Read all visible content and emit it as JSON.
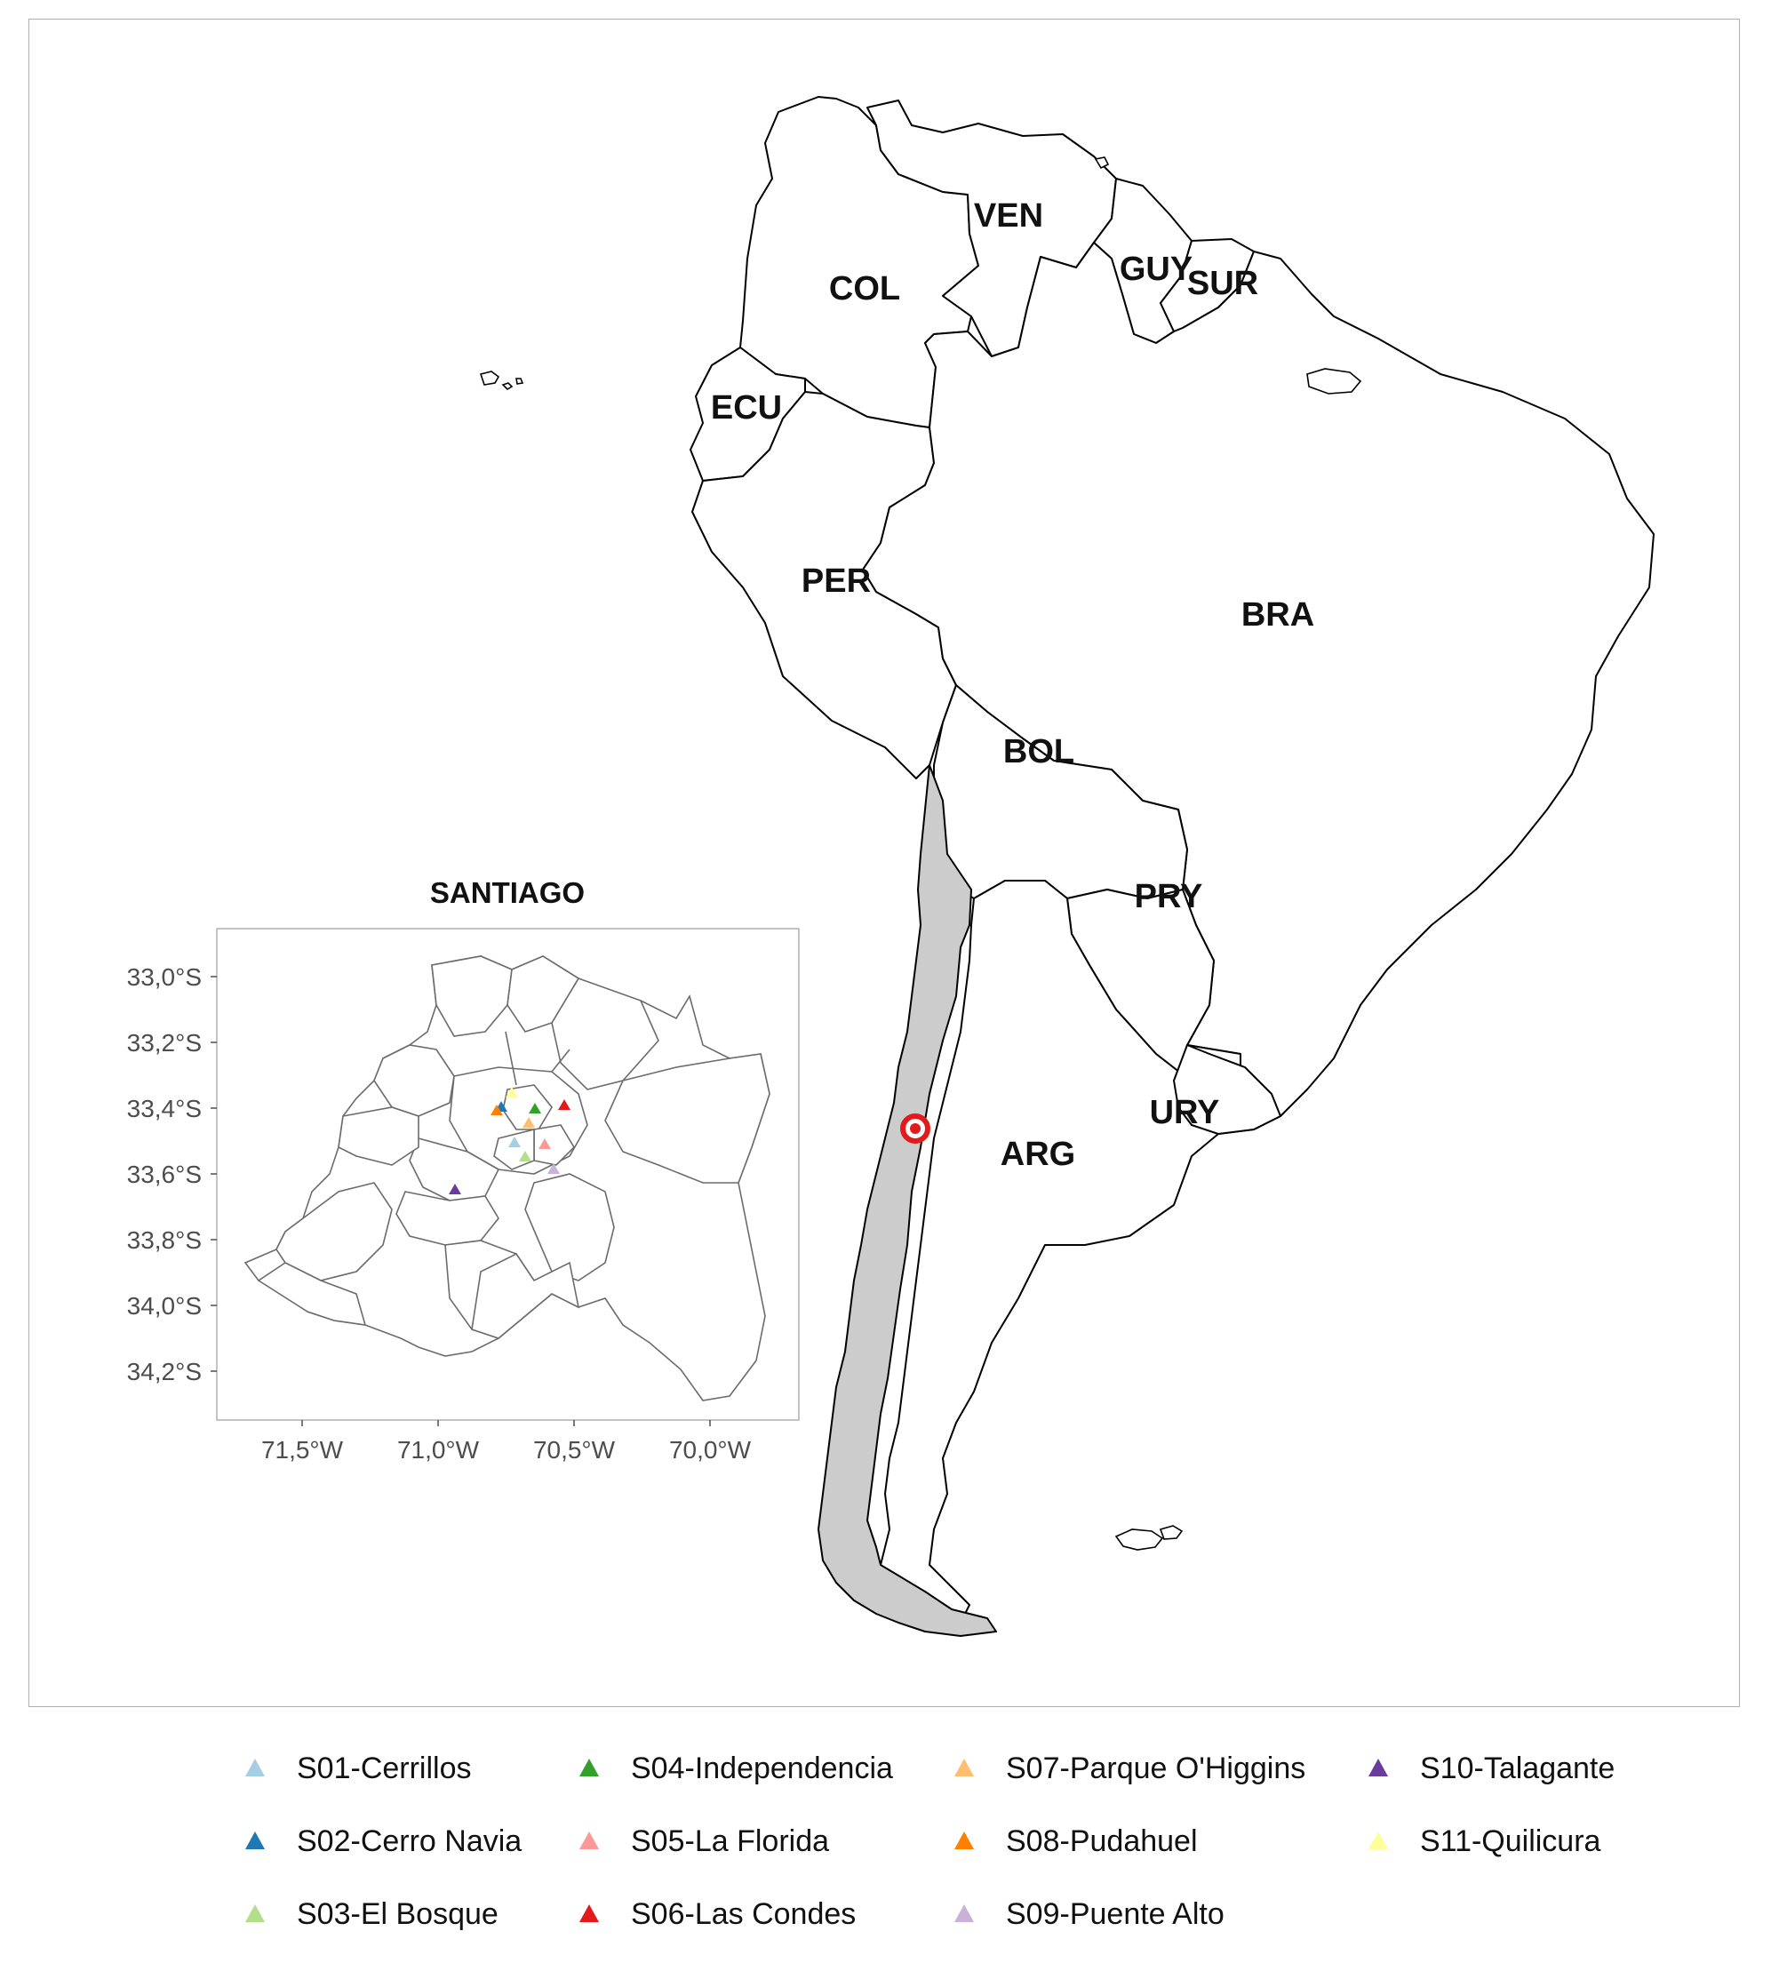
{
  "map": {
    "countries": [
      {
        "code": "VEN",
        "label": "VEN"
      },
      {
        "code": "GUY",
        "label": "GUY"
      },
      {
        "code": "SUR",
        "label": "SUR"
      },
      {
        "code": "COL",
        "label": "COL"
      },
      {
        "code": "ECU",
        "label": "ECU"
      },
      {
        "code": "PER",
        "label": "PER"
      },
      {
        "code": "BRA",
        "label": "BRA"
      },
      {
        "code": "BOL",
        "label": "BOL"
      },
      {
        "code": "PRY",
        "label": "PRY"
      },
      {
        "code": "ARG",
        "label": "ARG"
      },
      {
        "code": "URY",
        "label": "URY"
      }
    ],
    "highlighted_country": "Chile",
    "highlight_color": "#cccccc",
    "marker_color": "#e31a1c"
  },
  "inset": {
    "title": "SANTIAGO",
    "lat_ticks": [
      "33,0°S",
      "33,2°S",
      "33,4°S",
      "33,6°S",
      "33,8°S",
      "34,0°S",
      "34,2°S"
    ],
    "lon_ticks": [
      "71,5°W",
      "71,0°W",
      "70,5°W",
      "70,0°W"
    ]
  },
  "legend": {
    "items": [
      {
        "label": "S01-Cerrillos",
        "color": "#a6cee3"
      },
      {
        "label": "S02-Cerro Navia",
        "color": "#1f78b4"
      },
      {
        "label": "S03-El Bosque",
        "color": "#b2df8a"
      },
      {
        "label": "S04-Independencia",
        "color": "#33a02c"
      },
      {
        "label": "S05-La Florida",
        "color": "#fb9a99"
      },
      {
        "label": "S06-Las Condes",
        "color": "#e31a1c"
      },
      {
        "label": "S07-Parque O'Higgins",
        "color": "#fdbf6f"
      },
      {
        "label": "S08-Pudahuel",
        "color": "#ff7f00"
      },
      {
        "label": "S09-Puente Alto",
        "color": "#cab2d6"
      },
      {
        "label": "S10-Talagante",
        "color": "#6a3d9a"
      },
      {
        "label": "S11-Quilicura",
        "color": "#ffff99"
      }
    ]
  }
}
